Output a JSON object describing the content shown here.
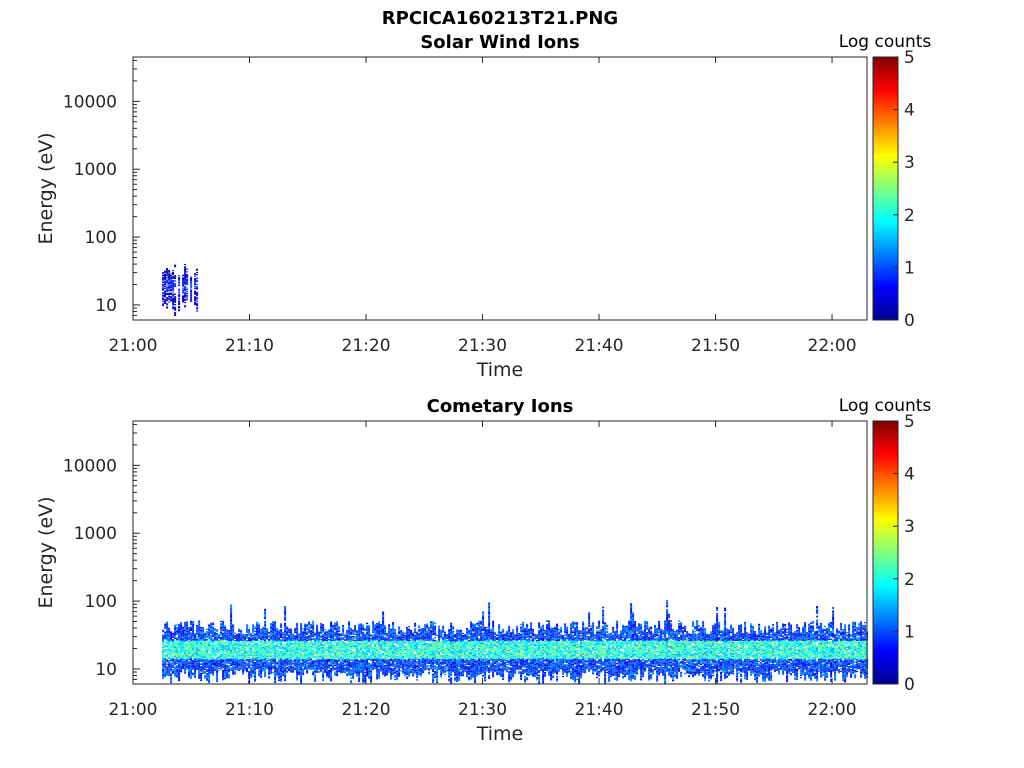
{
  "figure": {
    "title": "RPCICA160213T21.PNG"
  },
  "chart_data": [
    {
      "type": "heatmap",
      "title": "Solar Wind Ions",
      "xlabel": "Time",
      "ylabel": "Energy (eV)",
      "x_ticks": [
        "21:00",
        "21:10",
        "21:20",
        "21:30",
        "21:40",
        "21:50",
        "22:00"
      ],
      "x_range": [
        "21:00",
        "22:03"
      ],
      "y_scale": "log",
      "y_ticks": [
        10,
        100,
        1000,
        10000
      ],
      "y_tick_labels": [
        "10",
        "100",
        "1000",
        "10000"
      ],
      "y_range": [
        6,
        45000
      ],
      "colorbar": {
        "label": "Log counts",
        "ticks": [
          "0",
          "1",
          "2",
          "3",
          "4",
          "5"
        ],
        "range": [
          0,
          5
        ],
        "colormap": "jet"
      },
      "data_coverage": {
        "start": "21:02.5",
        "end": "21:05.5"
      },
      "band": {
        "low_eV": 9,
        "core_low_eV": 15,
        "core_high_eV": 24,
        "high_eV": 32,
        "peak_log_counts": 1.0
      },
      "grid": false
    },
    {
      "type": "heatmap",
      "title": "Cometary Ions",
      "xlabel": "Time",
      "ylabel": "Energy (eV)",
      "x_ticks": [
        "21:00",
        "21:10",
        "21:20",
        "21:30",
        "21:40",
        "21:50",
        "22:00"
      ],
      "x_range": [
        "21:00",
        "22:03"
      ],
      "y_scale": "log",
      "y_ticks": [
        10,
        100,
        1000,
        10000
      ],
      "y_tick_labels": [
        "10",
        "100",
        "1000",
        "10000"
      ],
      "y_range": [
        6,
        45000
      ],
      "colorbar": {
        "label": "Log counts",
        "ticks": [
          "0",
          "1",
          "2",
          "3",
          "4",
          "5"
        ],
        "range": [
          0,
          5
        ],
        "colormap": "jet"
      },
      "data_coverage": {
        "start": "21:02.5",
        "end": "22:03"
      },
      "band": {
        "low_eV": 8,
        "core_low_eV": 14,
        "core_high_eV": 26,
        "high_eV": 40,
        "peak_log_counts": 2.6,
        "sporadic_max_eV": 80
      },
      "grid": false
    }
  ],
  "colors": {
    "axis": "#262626",
    "background": "#ffffff"
  }
}
